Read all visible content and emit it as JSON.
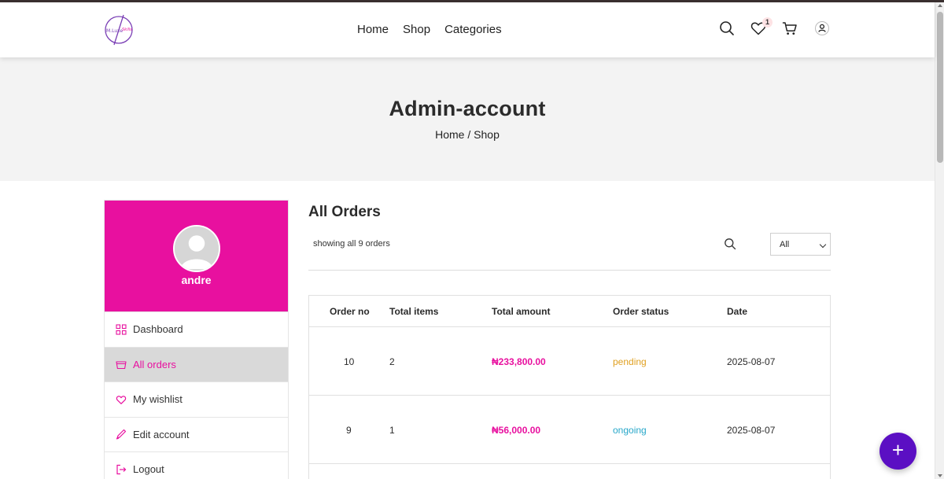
{
  "header": {
    "nav": [
      "Home",
      "Shop",
      "Categories"
    ],
    "wishlist_count": "1",
    "icons": [
      "search-icon",
      "heart-icon",
      "cart-icon",
      "user-icon"
    ]
  },
  "banner": {
    "title": "Admin-account",
    "breadcrumb": [
      "Home",
      "/",
      "Shop"
    ]
  },
  "sidebar": {
    "username": "andre",
    "items": [
      {
        "label": "Dashboard",
        "icon": "dashboard-icon"
      },
      {
        "label": "All orders",
        "icon": "basket-icon",
        "active": true
      },
      {
        "label": "My wishlist",
        "icon": "heart-icon"
      },
      {
        "label": "Edit account",
        "icon": "pencil-icon"
      },
      {
        "label": "Logout",
        "icon": "logout-icon"
      }
    ]
  },
  "main": {
    "title": "All Orders",
    "showing": "showing all 9 orders",
    "filter_value": "All"
  },
  "orders": {
    "columns": [
      "Order no",
      "Total items",
      "Total amount",
      "Order status",
      "Date"
    ],
    "rows": [
      {
        "order_no": "10",
        "items": "2",
        "amount": "₦233,800.00",
        "status": "pending",
        "date": "2025-08-07"
      },
      {
        "order_no": "9",
        "items": "1",
        "amount": "₦56,000.00",
        "status": "ongoing",
        "date": "2025-08-07"
      }
    ]
  },
  "fab": {
    "label": "+"
  },
  "colors": {
    "brand": "#e8109f",
    "pending": "#e0a021",
    "ongoing": "#27a7c9",
    "fab": "#5b0fc3",
    "active_bg": "#d9d9d9"
  }
}
